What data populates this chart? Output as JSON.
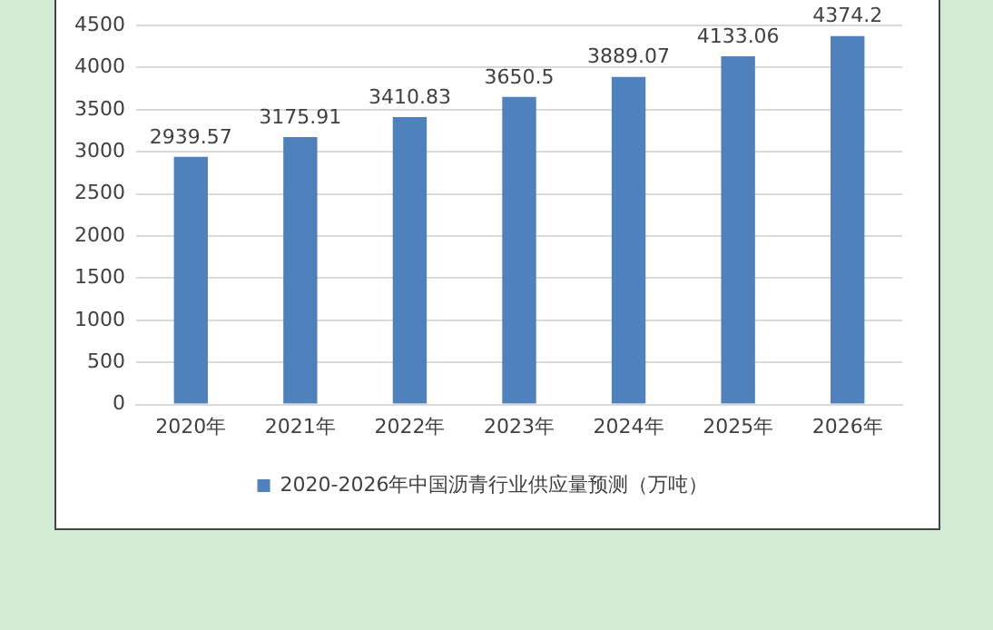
{
  "chart_data": {
    "type": "bar",
    "categories": [
      "2020年",
      "2021年",
      "2022年",
      "2023年",
      "2024年",
      "2025年",
      "2026年"
    ],
    "series": [
      {
        "name": "2020-2026年中国沥青行业供应量预测（万吨）",
        "color": "#4f81bd",
        "values": [
          2939.57,
          3175.91,
          3410.83,
          3650.5,
          3889.07,
          4133.06,
          4374.2
        ]
      }
    ],
    "ylim": [
      0,
      4500
    ],
    "yticks": [
      0,
      500,
      1000,
      1500,
      2000,
      2500,
      3000,
      3500,
      4000,
      4500
    ],
    "grid": "y",
    "legend": "bottom",
    "data_labels": true
  }
}
